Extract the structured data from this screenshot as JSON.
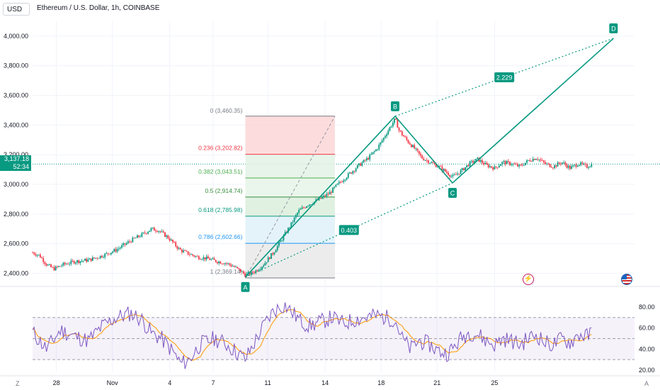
{
  "header": {
    "currency": "USD",
    "title": "Ethereum / U.S. Dollar, 1h, COINBASE"
  },
  "price_badge": {
    "price": "3,137.18",
    "timer": "52:34"
  },
  "icons": {
    "bolt": "bolt-icon",
    "flag": "us-flag-icon"
  },
  "corner": {
    "left": "Z",
    "right": "A"
  },
  "colors": {
    "up": "#089981",
    "down": "#f23645",
    "pattern": "#089981",
    "rsi": "#7e57c2",
    "rsi_ma": "#ff9800"
  },
  "chart_data": [
    {
      "type": "candlestick",
      "title": "Ethereum / U.S. Dollar, 1h, COINBASE",
      "ylim": [
        2350,
        4100
      ],
      "y_ticks": [
        "4,000.00",
        "3,800.00",
        "3,600.00",
        "3,400.00",
        "3,200.00",
        "3,000.00",
        "2,800.00",
        "2,600.00",
        "2,400.00"
      ],
      "y_tick_values": [
        4000,
        3800,
        3600,
        3400,
        3200,
        3000,
        2800,
        2600,
        2400
      ],
      "x_ticks": [
        "28",
        "Nov",
        "4",
        "7",
        "11",
        "14",
        "18",
        "21",
        "25"
      ],
      "current_price": 3137.18,
      "price_path": [
        [
          0,
          2540
        ],
        [
          5,
          2520
        ],
        [
          10,
          2460
        ],
        [
          15,
          2430
        ],
        [
          22,
          2460
        ],
        [
          30,
          2480
        ],
        [
          40,
          2490
        ],
        [
          50,
          2520
        ],
        [
          60,
          2560
        ],
        [
          70,
          2620
        ],
        [
          78,
          2660
        ],
        [
          85,
          2700
        ],
        [
          90,
          2690
        ],
        [
          97,
          2640
        ],
        [
          105,
          2560
        ],
        [
          112,
          2530
        ],
        [
          118,
          2510
        ],
        [
          125,
          2500
        ],
        [
          132,
          2480
        ],
        [
          138,
          2470
        ],
        [
          143,
          2450
        ],
        [
          148,
          2420
        ],
        [
          152,
          2390
        ],
        [
          156,
          2400
        ],
        [
          160,
          2420
        ],
        [
          165,
          2460
        ],
        [
          172,
          2540
        ],
        [
          178,
          2630
        ],
        [
          184,
          2720
        ],
        [
          190,
          2820
        ],
        [
          196,
          2860
        ],
        [
          205,
          2900
        ],
        [
          212,
          2940
        ],
        [
          218,
          3000
        ],
        [
          225,
          3060
        ],
        [
          232,
          3120
        ],
        [
          240,
          3180
        ],
        [
          246,
          3240
        ],
        [
          250,
          3300
        ],
        [
          255,
          3380
        ],
        [
          259,
          3440
        ],
        [
          262,
          3360
        ],
        [
          268,
          3290
        ],
        [
          273,
          3240
        ],
        [
          278,
          3180
        ],
        [
          284,
          3150
        ],
        [
          290,
          3120
        ],
        [
          296,
          3080
        ],
        [
          300,
          3050
        ],
        [
          306,
          3090
        ],
        [
          312,
          3140
        ],
        [
          318,
          3170
        ],
        [
          324,
          3130
        ],
        [
          330,
          3110
        ],
        [
          336,
          3150
        ],
        [
          342,
          3140
        ],
        [
          348,
          3120
        ],
        [
          354,
          3160
        ],
        [
          360,
          3180
        ],
        [
          366,
          3140
        ],
        [
          372,
          3120
        ],
        [
          378,
          3150
        ],
        [
          384,
          3110
        ],
        [
          390,
          3140
        ],
        [
          396,
          3120
        ],
        [
          400,
          3137
        ]
      ],
      "harmonic_pattern": {
        "points": [
          {
            "label": "A",
            "t": 152,
            "price": 2375
          },
          {
            "label": "B",
            "t": 259,
            "price": 3460
          },
          {
            "label": "C",
            "t": 300,
            "price": 3010
          },
          {
            "label": "D",
            "t": 415,
            "price": 3985
          }
        ],
        "ratios": [
          {
            "value": "0.403",
            "between": "A-C"
          },
          {
            "value": "2.229",
            "between": "B-D"
          }
        ]
      },
      "fibonacci": {
        "t_start": 152,
        "t_end": 216,
        "levels": [
          {
            "ratio": 0,
            "price": 3460.35,
            "label": "0 (3,460.35)",
            "color": "#787b86",
            "fill": "#fbd6d6"
          },
          {
            "ratio": 0.236,
            "price": 3202.82,
            "label": "0.236 (3,202.82)",
            "color": "#f23645",
            "fill": "#e3f2e5"
          },
          {
            "ratio": 0.382,
            "price": 3043.51,
            "label": "0.382 (3,043.51)",
            "color": "#4caf50",
            "fill": "#e6f4e7"
          },
          {
            "ratio": 0.5,
            "price": 2914.74,
            "label": "0.5 (2,914.74)",
            "color": "#388e3c",
            "fill": "#dbefdc"
          },
          {
            "ratio": 0.618,
            "price": 2785.98,
            "label": "0.618 (2,785.98)",
            "color": "#089981",
            "fill": "#dff1f8"
          },
          {
            "ratio": 0.786,
            "price": 2602.66,
            "label": "0.786 (2,602.66)",
            "color": "#2196f3",
            "fill": "#e9e9e9"
          },
          {
            "ratio": 1,
            "price": 2369.14,
            "label": "1 (2,369.14)",
            "color": "#787b86",
            "fill": "none"
          }
        ]
      }
    },
    {
      "type": "line",
      "title": "",
      "ylim": [
        18,
        90
      ],
      "y_ticks": [
        "80.00",
        "60.00",
        "40.00",
        "20.00"
      ],
      "y_tick_values": [
        80,
        60,
        40,
        20
      ],
      "bands": [
        30,
        50,
        70
      ],
      "rsi_path": [
        [
          0,
          56
        ],
        [
          10,
          40
        ],
        [
          20,
          58
        ],
        [
          30,
          52
        ],
        [
          40,
          48
        ],
        [
          50,
          62
        ],
        [
          60,
          70
        ],
        [
          70,
          74
        ],
        [
          78,
          68
        ],
        [
          85,
          55
        ],
        [
          92,
          50
        ],
        [
          100,
          38
        ],
        [
          106,
          26
        ],
        [
          112,
          30
        ],
        [
          120,
          45
        ],
        [
          130,
          50
        ],
        [
          138,
          45
        ],
        [
          145,
          38
        ],
        [
          152,
          30
        ],
        [
          158,
          45
        ],
        [
          165,
          62
        ],
        [
          172,
          76
        ],
        [
          180,
          82
        ],
        [
          186,
          74
        ],
        [
          192,
          66
        ],
        [
          198,
          62
        ],
        [
          206,
          66
        ],
        [
          214,
          70
        ],
        [
          222,
          64
        ],
        [
          230,
          68
        ],
        [
          238,
          70
        ],
        [
          246,
          72
        ],
        [
          252,
          70
        ],
        [
          259,
          68
        ],
        [
          264,
          50
        ],
        [
          270,
          40
        ],
        [
          276,
          48
        ],
        [
          284,
          44
        ],
        [
          290,
          38
        ],
        [
          296,
          36
        ],
        [
          300,
          40
        ],
        [
          306,
          50
        ],
        [
          312,
          56
        ],
        [
          318,
          54
        ],
        [
          324,
          48
        ],
        [
          330,
          44
        ],
        [
          336,
          50
        ],
        [
          342,
          48
        ],
        [
          348,
          44
        ],
        [
          354,
          50
        ],
        [
          360,
          54
        ],
        [
          366,
          46
        ],
        [
          372,
          44
        ],
        [
          378,
          50
        ],
        [
          384,
          46
        ],
        [
          390,
          54
        ],
        [
          396,
          52
        ],
        [
          400,
          56
        ]
      ]
    }
  ]
}
